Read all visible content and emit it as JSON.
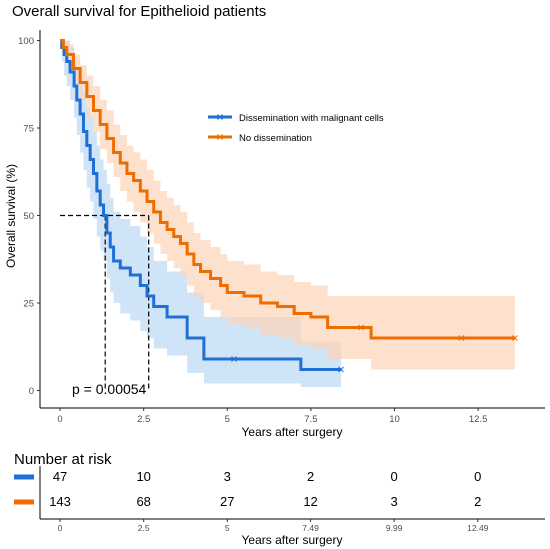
{
  "chart_data": {
    "type": "line",
    "title": "Overall survival for Epithelioid patients",
    "xlabel": "Years after surgery",
    "ylabel": "Overall survival (%)",
    "xlim": [
      -0.6,
      14.5
    ],
    "ylim": [
      -5,
      103
    ],
    "xticks": [
      0,
      2.5,
      5,
      7.5,
      10,
      12.5
    ],
    "yticks": [
      0,
      25,
      50,
      75,
      100
    ],
    "median_survival_line_y": 50,
    "median_times": [
      1.35,
      2.65
    ],
    "p_value": "p = 0.00054",
    "legend_position": "top-right",
    "series": [
      {
        "name": "Dissemination with malignant cells",
        "color": "#1f6fd6",
        "fill": "#bcd8f3",
        "x": [
          0,
          0.05,
          0.12,
          0.2,
          0.3,
          0.42,
          0.5,
          0.6,
          0.7,
          0.8,
          0.9,
          1.0,
          1.1,
          1.2,
          1.3,
          1.4,
          1.5,
          1.6,
          1.8,
          2.1,
          2.4,
          2.6,
          2.8,
          3.2,
          3.8,
          4.3,
          5.2,
          7.2,
          8.4
        ],
        "y": [
          100,
          98,
          96,
          94,
          91,
          87,
          83,
          79,
          74,
          70,
          66,
          62,
          57,
          53,
          50,
          45,
          41,
          37,
          35,
          33,
          30,
          27,
          24,
          21,
          15,
          9,
          9,
          6,
          6
        ],
        "lower": [
          100,
          94,
          90,
          87,
          83,
          78,
          73,
          68,
          63,
          58,
          54,
          49,
          44,
          40,
          37,
          32,
          28,
          25,
          22,
          20,
          17,
          15,
          12,
          10,
          5,
          2,
          2,
          1,
          1
        ],
        "upper": [
          100,
          100,
          100,
          100,
          98,
          95,
          92,
          89,
          85,
          81,
          78,
          74,
          70,
          66,
          63,
          59,
          55,
          51,
          49,
          47,
          44,
          41,
          37,
          34,
          28,
          21,
          21,
          14,
          14
        ]
      },
      {
        "name": "No dissemination",
        "color": "#ef6c00",
        "fill": "#fdd4b7",
        "x": [
          0,
          0.1,
          0.2,
          0.4,
          0.6,
          0.8,
          1.0,
          1.2,
          1.4,
          1.6,
          1.8,
          2.0,
          2.2,
          2.4,
          2.6,
          2.8,
          3.0,
          3.2,
          3.4,
          3.6,
          3.8,
          4.0,
          4.2,
          4.5,
          4.8,
          5.0,
          5.5,
          6.0,
          6.5,
          7.0,
          7.5,
          8.0,
          9.0,
          9.3,
          12.0,
          13.6
        ],
        "y": [
          100,
          98,
          96,
          92,
          88,
          84,
          80,
          76,
          72,
          68,
          65,
          62,
          60,
          57,
          54,
          51,
          48,
          46,
          44,
          42,
          39,
          36,
          34,
          32,
          30,
          28,
          27,
          25,
          24,
          22,
          21,
          18,
          18,
          15,
          15,
          15
        ],
        "lower": [
          100,
          96,
          93,
          88,
          83,
          78,
          74,
          69,
          65,
          61,
          57,
          54,
          51,
          48,
          45,
          42,
          39,
          37,
          35,
          33,
          30,
          27,
          25,
          23,
          21,
          19,
          18,
          16,
          15,
          13,
          12,
          9,
          9,
          6,
          6,
          6
        ],
        "upper": [
          100,
          100,
          99,
          96,
          93,
          90,
          87,
          83,
          80,
          76,
          73,
          70,
          68,
          66,
          63,
          60,
          57,
          55,
          53,
          51,
          48,
          45,
          43,
          41,
          39,
          37,
          36,
          34,
          33,
          31,
          30,
          27,
          27,
          27,
          27,
          27
        ]
      }
    ]
  },
  "risk_table": {
    "title": "Number at risk",
    "xlabel": "Years after surgery",
    "tick_labels": [
      "0",
      "2.5",
      "5",
      "7.49",
      "9.99",
      "12.49"
    ],
    "tick_values": [
      0,
      2.5,
      5,
      7.49,
      9.99,
      12.49
    ],
    "rows": [
      {
        "color": "#1f6fd6",
        "counts": [
          "47",
          "10",
          "3",
          "2",
          "0",
          "0"
        ]
      },
      {
        "color": "#ef6c00",
        "counts": [
          "143",
          "68",
          "27",
          "12",
          "3",
          "2"
        ]
      }
    ]
  }
}
